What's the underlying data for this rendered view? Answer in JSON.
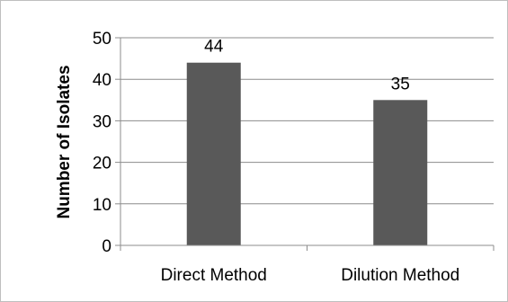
{
  "chart_data": {
    "type": "bar",
    "categories": [
      "Direct Method",
      "Dilution Method"
    ],
    "values": [
      44,
      35
    ],
    "data_labels": [
      "44",
      "35"
    ],
    "title": "",
    "xlabel": "",
    "ylabel": "Number of Isolates",
    "ylim": [
      0,
      50
    ],
    "yticks": [
      0,
      10,
      20,
      30,
      40,
      50
    ],
    "ytick_labels": [
      "0",
      "10",
      "20",
      "30",
      "40",
      "50"
    ],
    "grid": "horizontal",
    "legend": "none",
    "bar_color": "#595959",
    "grid_color": "#8c8c8c",
    "axis_color": "#8c8c8c"
  }
}
